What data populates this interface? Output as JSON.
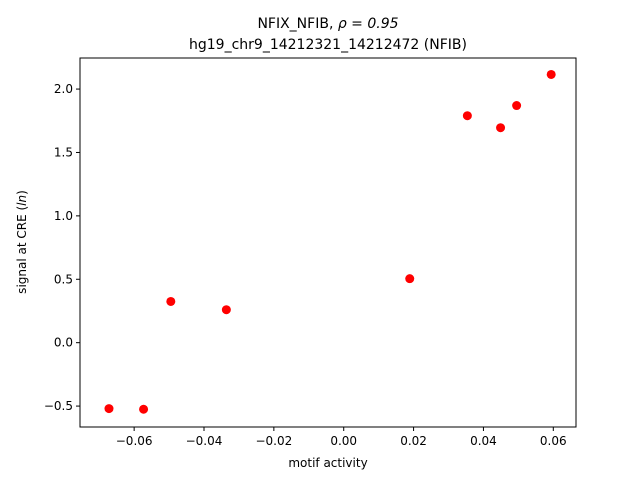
{
  "chart_data": {
    "type": "scatter",
    "title_line1": "NFIX_NFIB, ",
    "title_rho": "ρ = 0.95",
    "title_line2": "hg19_chr9_14212321_14212472 (NFIB)",
    "xlabel": "motif activity",
    "ylabel_prefix": "signal at CRE (",
    "ylabel_italic": "ln",
    "ylabel_suffix": ")",
    "xlim": [
      -0.0755,
      0.0665
    ],
    "ylim": [
      -0.665,
      2.245
    ],
    "xticks": [
      -0.06,
      -0.04,
      -0.02,
      0.0,
      0.02,
      0.04,
      0.06
    ],
    "xtick_labels": [
      "−0.06",
      "−0.04",
      "−0.02",
      "0.00",
      "0.02",
      "0.04",
      "0.06"
    ],
    "yticks": [
      -0.5,
      0.0,
      0.5,
      1.0,
      1.5,
      2.0
    ],
    "ytick_labels": [
      "−0.5",
      "0.0",
      "0.5",
      "1.0",
      "1.5",
      "2.0"
    ],
    "marker_color": "#ff0000",
    "points": [
      {
        "x": -0.0672,
        "y": -0.52
      },
      {
        "x": -0.0573,
        "y": -0.525
      },
      {
        "x": -0.0495,
        "y": 0.325
      },
      {
        "x": -0.0336,
        "y": 0.26
      },
      {
        "x": 0.0189,
        "y": 0.505
      },
      {
        "x": 0.0354,
        "y": 1.79
      },
      {
        "x": 0.0449,
        "y": 1.695
      },
      {
        "x": 0.0495,
        "y": 1.87
      },
      {
        "x": 0.0594,
        "y": 2.115
      }
    ]
  }
}
